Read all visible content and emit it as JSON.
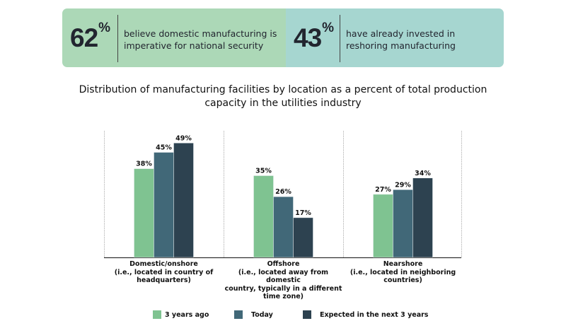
{
  "stats": [
    {
      "value": "62",
      "unit": "%",
      "text_line1": "believe domestic manufacturing is",
      "text_line2": "imperative for national security",
      "color": "#acd8b7"
    },
    {
      "value": "43",
      "unit": "%",
      "text_line1": "have already invested in",
      "text_line2": "reshoring manufacturing",
      "color": "#a6d6d0"
    }
  ],
  "chart_data": {
    "type": "bar",
    "title": "Distribution of manufacturing facilities by location as a percent of total production capacity in the utilities industry",
    "title_line1": "Distribution of manufacturing facilities by location as a percent of total production",
    "title_line2": "capacity in the utilities industry",
    "xlabel": "",
    "ylabel": "",
    "ylim": [
      0,
      100
    ],
    "grid": false,
    "legend_position": "bottom",
    "categories": [
      {
        "name": "Domestic/onshore",
        "lines": [
          "Domestic/onshore",
          "(i.e., located in country of",
          "headquarters)"
        ]
      },
      {
        "name": "Offshore",
        "lines": [
          "Offshore",
          "(i.e., located away from domestic",
          "country, typically in a different",
          "time zone)"
        ]
      },
      {
        "name": "Nearshore",
        "lines": [
          "Nearshore",
          "(i.e., located in neighboring",
          "countries)"
        ]
      }
    ],
    "series": [
      {
        "name": "3 years ago",
        "color": "#7fc391",
        "values": [
          38,
          35,
          27
        ]
      },
      {
        "name": "Today",
        "color": "#416878",
        "values": [
          45,
          26,
          29
        ]
      },
      {
        "name": "Expected in the next 3 years",
        "color": "#2d4250",
        "values": [
          49,
          17,
          34
        ]
      }
    ],
    "value_suffix": "%"
  }
}
